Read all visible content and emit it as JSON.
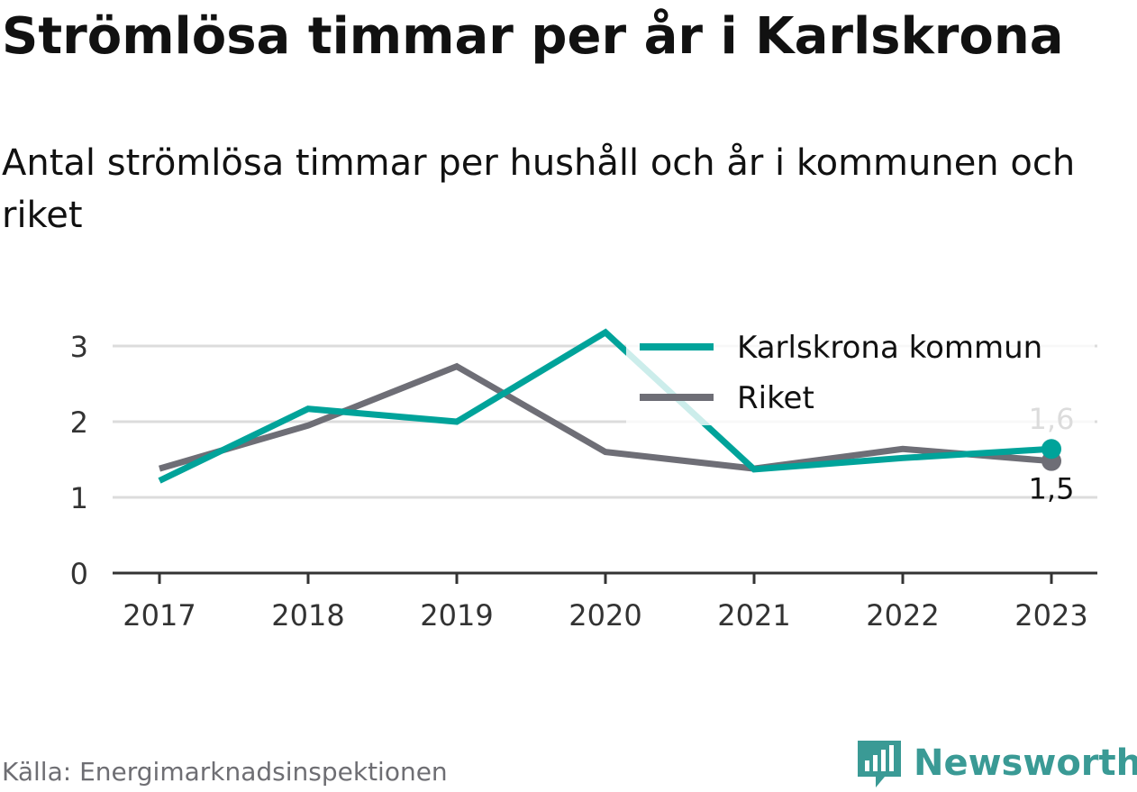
{
  "title": "Strömlösa timmar per år i Karlskrona",
  "subtitle": "Antal strömlösa timmar per hushåll och år i kommunen och riket",
  "source": "Källa: Energimarknadsinspektionen",
  "brand": {
    "name": "Newsworthy",
    "icon": "newsworthy-logo-icon",
    "color": "#3a9a95"
  },
  "chart_data": {
    "type": "line",
    "x": [
      "2017",
      "2018",
      "2019",
      "2020",
      "2021",
      "2022",
      "2023"
    ],
    "ylim": [
      0,
      3.3
    ],
    "yticks": [
      0,
      1,
      2,
      3
    ],
    "grid": true,
    "legend_position": "top-right",
    "series": [
      {
        "name": "Karlskrona kommun",
        "color": "#00a39a",
        "values": [
          1.22,
          2.17,
          2.0,
          3.18,
          1.37,
          1.52,
          1.64
        ],
        "end_label": "1,6"
      },
      {
        "name": "Riket",
        "color": "#6e6e76",
        "values": [
          1.38,
          1.95,
          2.73,
          1.6,
          1.38,
          1.64,
          1.48
        ],
        "end_label": "1,5"
      }
    ]
  }
}
